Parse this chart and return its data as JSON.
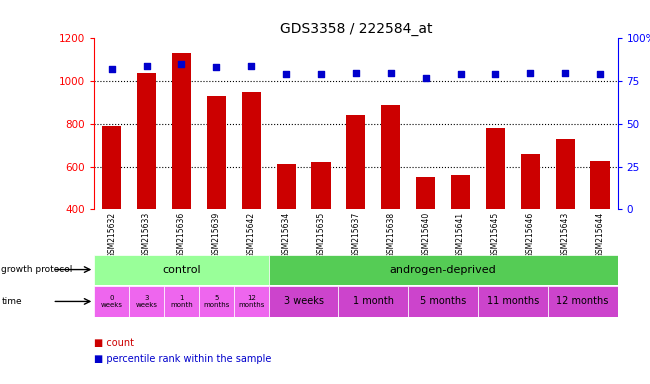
{
  "title": "GDS3358 / 222584_at",
  "samples": [
    "GSM215632",
    "GSM215633",
    "GSM215636",
    "GSM215639",
    "GSM215642",
    "GSM215634",
    "GSM215635",
    "GSM215637",
    "GSM215638",
    "GSM215640",
    "GSM215641",
    "GSM215645",
    "GSM215646",
    "GSM215643",
    "GSM215644"
  ],
  "counts": [
    790,
    1040,
    1130,
    930,
    950,
    610,
    620,
    840,
    890,
    550,
    560,
    780,
    660,
    730,
    625
  ],
  "percentiles": [
    82,
    84,
    85,
    83,
    84,
    79,
    79,
    80,
    80,
    77,
    79,
    79,
    80,
    80,
    79
  ],
  "ylim_left": [
    400,
    1200
  ],
  "ylim_right": [
    0,
    100
  ],
  "yticks_left": [
    400,
    600,
    800,
    1000,
    1200
  ],
  "yticks_right": [
    0,
    25,
    50,
    75,
    100
  ],
  "bar_color": "#cc0000",
  "dot_color": "#0000cc",
  "grid_color": "#000000",
  "background_color": "#ffffff",
  "xticklabel_bg": "#c8c8c8",
  "protocol_row_color_control": "#99ff99",
  "protocol_row_color_androgen": "#55cc55",
  "time_row_color_control": "#ee66ee",
  "time_row_color_androgen": "#cc44cc",
  "protocol_label": "growth protocol",
  "time_label": "time",
  "control_label": "control",
  "androgen_label": "androgen-deprived",
  "control_times": [
    "0\nweeks",
    "3\nweeks",
    "1\nmonth",
    "5\nmonths",
    "12\nmonths"
  ],
  "androgen_times": [
    "3 weeks",
    "1 month",
    "5 months",
    "11 months",
    "12 months"
  ],
  "androgen_group_sizes": [
    2,
    2,
    2,
    2,
    2
  ],
  "n_control": 5,
  "n_total": 15,
  "legend_count": "count",
  "legend_percentile": "percentile rank within the sample"
}
